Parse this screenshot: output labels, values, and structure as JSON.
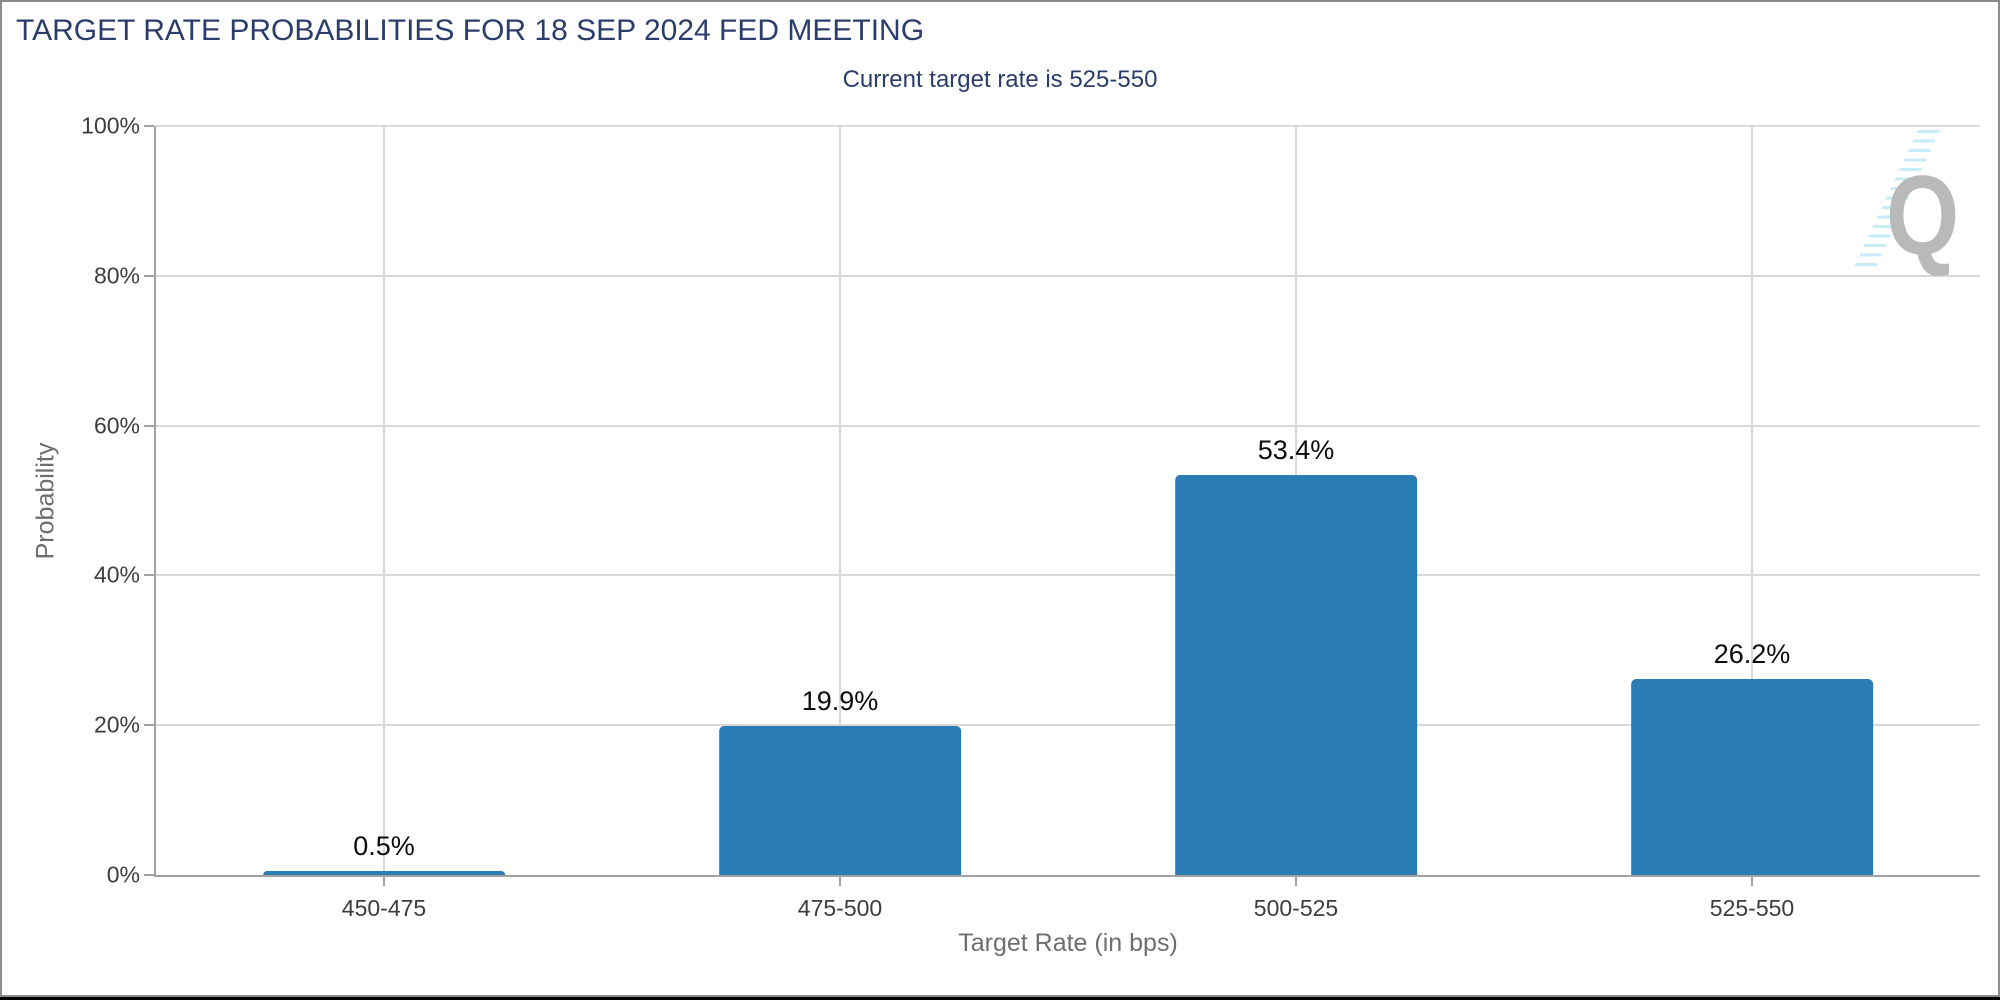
{
  "page": {
    "background": "#000000",
    "card_border_color": "#8b8b8b"
  },
  "colors": {
    "navy_text": "#2b3d6b",
    "bar": "#2b7cb5",
    "gridline": "#d9d9d9",
    "axis_line": "#a2a2a2",
    "tick_label": "#3d3d3d",
    "axis_title": "#6e6e6e",
    "data_label": "#0c0c0c",
    "watermark_letter": "#b9b9b9",
    "watermark_streak": "#c7ecf8"
  },
  "watermark": {
    "letter": "Q",
    "description": "q-logo-with-speed-lines"
  },
  "chart_data": {
    "type": "bar",
    "title": "TARGET RATE PROBABILITIES FOR 18 SEP 2024 FED MEETING",
    "subtitle": "Current target rate is 525-550",
    "categories": [
      "450-475",
      "475-500",
      "500-525",
      "525-550"
    ],
    "values": [
      0.5,
      19.9,
      53.4,
      26.2
    ],
    "value_labels": [
      "0.5%",
      "19.9%",
      "53.4%",
      "26.2%"
    ],
    "xlabel": "Target Rate (in bps)",
    "ylabel": "Probability",
    "ylim": [
      0,
      100
    ],
    "yticks": [
      0,
      20,
      40,
      60,
      80,
      100
    ],
    "ytick_labels": [
      "0%",
      "20%",
      "40%",
      "60%",
      "80%",
      "100%"
    ],
    "grid": "on",
    "legend": "none",
    "bar_color": "#2b7cb5"
  }
}
